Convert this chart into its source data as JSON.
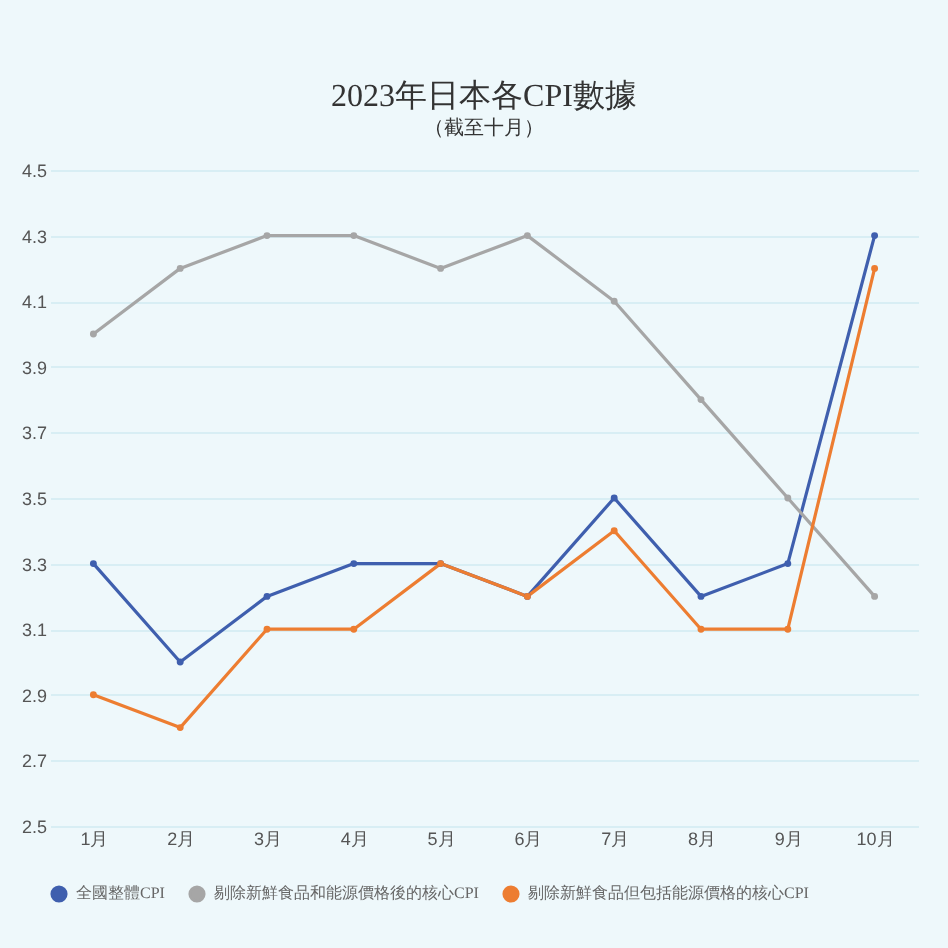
{
  "chart_data": {
    "type": "line",
    "title": "2023年日本各CPI數據",
    "subtitle": "（截至十月）",
    "categories": [
      "1月",
      "2月",
      "3月",
      "4月",
      "5月",
      "6月",
      "7月",
      "8月",
      "9月",
      "10月"
    ],
    "series": [
      {
        "name": "全國整體CPI",
        "color": "#3f5fae",
        "values": [
          3.3,
          3.0,
          3.2,
          3.3,
          3.3,
          3.2,
          3.5,
          3.2,
          3.3,
          4.3
        ]
      },
      {
        "name": "剔除新鮮食品和能源價格後的核心CPI",
        "color": "#a6a6a6",
        "values": [
          4.0,
          4.2,
          4.3,
          4.3,
          4.2,
          4.3,
          4.1,
          3.8,
          3.5,
          3.2
        ]
      },
      {
        "name": "剔除新鮮食品但包括能源價格的核心CPI",
        "color": "#ed7d31",
        "values": [
          2.9,
          2.8,
          3.1,
          3.1,
          3.3,
          3.2,
          3.4,
          3.1,
          3.1,
          4.2
        ]
      }
    ],
    "ylim": [
      2.5,
      4.5
    ],
    "yticks": [
      2.5,
      2.7,
      2.9,
      3.1,
      3.3,
      3.5,
      3.7,
      3.9,
      4.1,
      4.3,
      4.5
    ],
    "grid": "y",
    "legend": "bottom",
    "marker": "circle",
    "line_style": "solid"
  }
}
